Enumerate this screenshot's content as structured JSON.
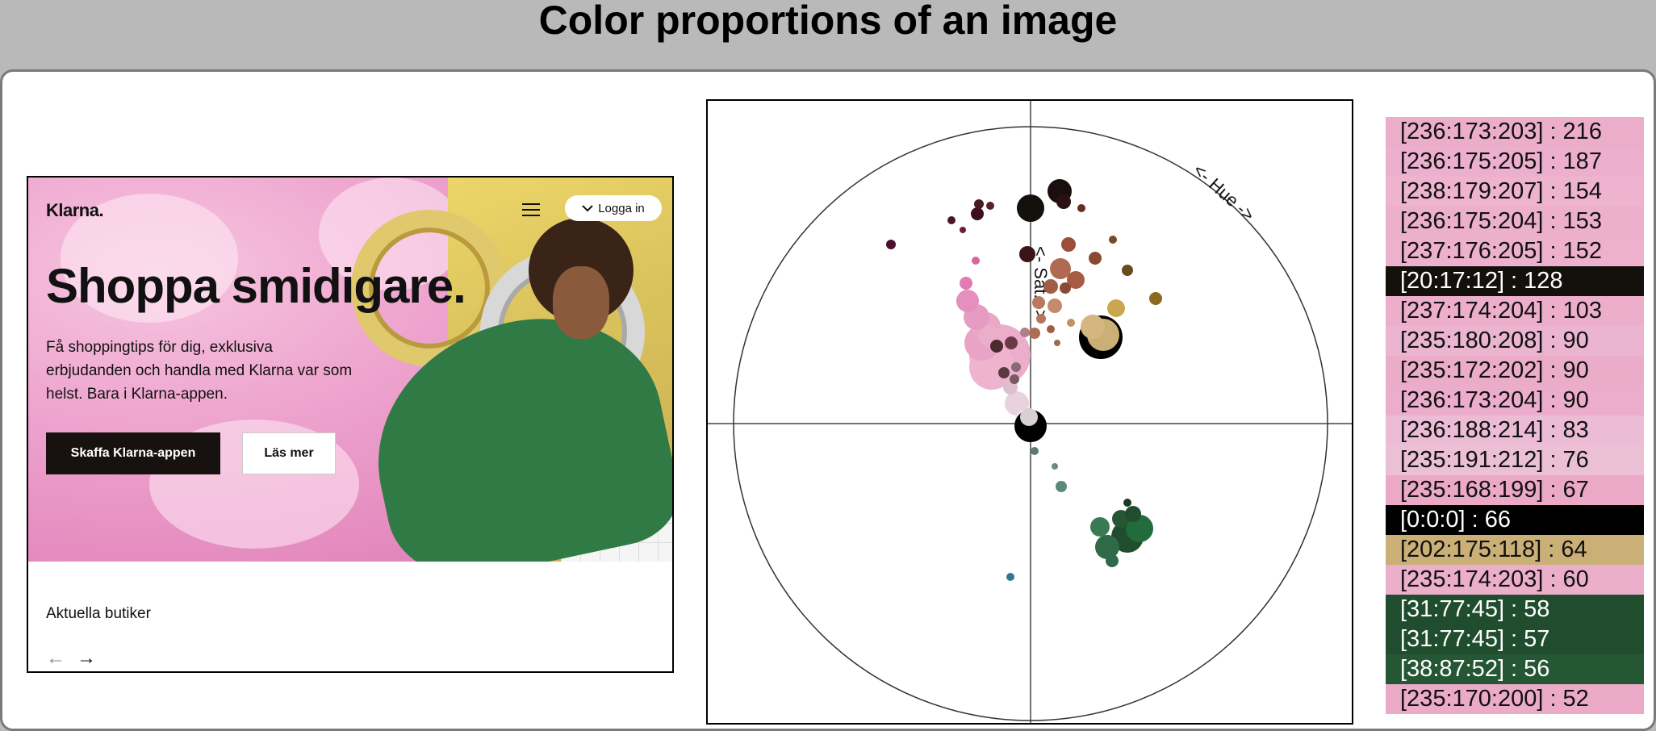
{
  "page": {
    "title": "Color proportions of an image"
  },
  "screenshot": {
    "logo": "Klarna.",
    "login_label": "Logga in",
    "headline": "Shoppa smidigare.",
    "subtext": "Få shoppingtips för dig, exklusiva erbjudanden och handla med Klarna var som helst. Bara i Klarna-appen.",
    "primary_button": "Skaffa Klarna-appen",
    "secondary_button": "Läs mer",
    "section_label": "Aktuella butiker",
    "prev_arrow": "←",
    "next_arrow": "→"
  },
  "plot": {
    "hue_label": "<- Hue ->",
    "sat_label": "<- Sat. ->"
  },
  "color_list": [
    {
      "label": "[236:173:203] : 216",
      "bg": "#ecadcb",
      "fg": "#111111"
    },
    {
      "label": "[236:175:205] : 187",
      "bg": "#ecafcd",
      "fg": "#111111"
    },
    {
      "label": "[238:179:207] : 154",
      "bg": "#eeb3cf",
      "fg": "#111111"
    },
    {
      "label": "[236:175:204] : 153",
      "bg": "#ecafcc",
      "fg": "#111111"
    },
    {
      "label": "[237:176:205] : 152",
      "bg": "#edb0cd",
      "fg": "#111111"
    },
    {
      "label": "[20:17:12] : 128",
      "bg": "#14110c",
      "fg": "#ffffff"
    },
    {
      "label": "[237:174:204] : 103",
      "bg": "#edaecc",
      "fg": "#111111"
    },
    {
      "label": "[235:180:208] : 90",
      "bg": "#ebb4d0",
      "fg": "#111111"
    },
    {
      "label": "[235:172:202] : 90",
      "bg": "#ebacca",
      "fg": "#111111"
    },
    {
      "label": "[236:173:204] : 90",
      "bg": "#ecadcc",
      "fg": "#111111"
    },
    {
      "label": "[236:188:214] : 83",
      "bg": "#ecbcd6",
      "fg": "#111111"
    },
    {
      "label": "[235:191:212] : 76",
      "bg": "#ebbfd4",
      "fg": "#111111"
    },
    {
      "label": "[235:168:199] : 67",
      "bg": "#eba8c7",
      "fg": "#111111"
    },
    {
      "label": "[0:0:0] : 66",
      "bg": "#000000",
      "fg": "#ffffff"
    },
    {
      "label": "[202:175:118] : 64",
      "bg": "#caaf76",
      "fg": "#111111"
    },
    {
      "label": "[235:174:203] : 60",
      "bg": "#ebaecb",
      "fg": "#111111"
    },
    {
      "label": "[31:77:45] : 58",
      "bg": "#1f4d2d",
      "fg": "#ffffff"
    },
    {
      "label": "[31:77:45] : 57",
      "bg": "#1f4d2d",
      "fg": "#ffffff"
    },
    {
      "label": "[38:87:52] : 56",
      "bg": "#265734",
      "fg": "#ffffff"
    },
    {
      "label": "[235:170:200] : 52",
      "bg": "#ebaac8",
      "fg": "#111111"
    }
  ]
}
